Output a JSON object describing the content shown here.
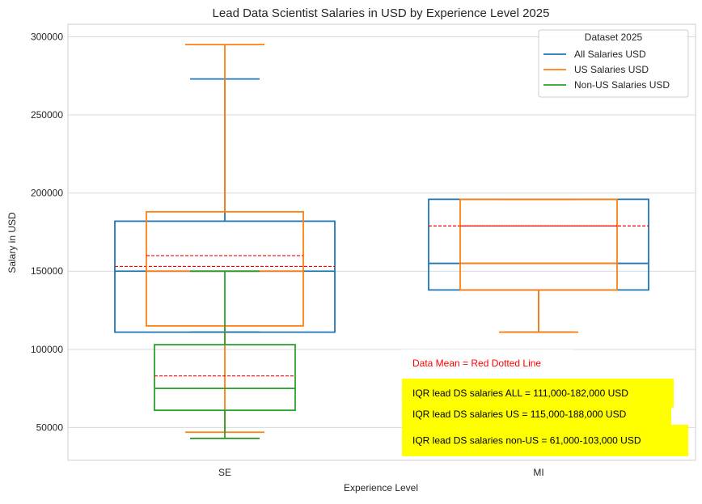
{
  "chart_data": {
    "type": "box",
    "title": "Lead Data Scientist Salaries in USD by Experience Level 2025",
    "xlabel": "Experience Level",
    "ylabel": "Salary in USD",
    "categories": [
      "SE",
      "MI"
    ],
    "ylim": [
      29000,
      308000
    ],
    "yticks": [
      50000,
      100000,
      150000,
      200000,
      250000,
      300000
    ],
    "grid": true,
    "legend": {
      "title": "Dataset 2025",
      "placement": "top-right",
      "entries": [
        {
          "name": "All Salaries USD",
          "color": "#1f77b4"
        },
        {
          "name": "US Salaries USD",
          "color": "#ff7f0e"
        },
        {
          "name": "Non-US Salaries USD",
          "color": "#2ca02c"
        }
      ]
    },
    "series": [
      {
        "name": "All Salaries USD",
        "color": "#1f77b4",
        "boxes": [
          {
            "category": "SE",
            "whisker_low": 111000,
            "q1": 111000,
            "median": 150000,
            "q3": 182000,
            "whisker_high": 273000,
            "mean": 153000
          },
          {
            "category": "MI",
            "whisker_low": 111000,
            "q1": 138000,
            "median": 155000,
            "q3": 196000,
            "whisker_high": 196000,
            "mean": 179000
          }
        ]
      },
      {
        "name": "US Salaries USD",
        "color": "#ff7f0e",
        "boxes": [
          {
            "category": "SE",
            "whisker_low": 47000,
            "q1": 115000,
            "median": 150000,
            "q3": 188000,
            "whisker_high": 295000,
            "mean": 160000
          },
          {
            "category": "MI",
            "whisker_low": 111000,
            "q1": 138000,
            "median": 155000,
            "q3": 196000,
            "whisker_high": 196000,
            "mean": 179000
          }
        ]
      },
      {
        "name": "Non-US Salaries USD",
        "color": "#2ca02c",
        "boxes": [
          {
            "category": "SE",
            "whisker_low": 43000,
            "q1": 61000,
            "median": 75000,
            "q3": 103000,
            "whisker_high": 150000,
            "mean": 83000
          }
        ]
      }
    ],
    "mean_line_color": "#ff0000",
    "annotations": [
      {
        "text": "Data Mean = Red Dotted Line",
        "color": "#ff0000",
        "background": "#ffffff"
      },
      {
        "text": "IQR lead DS salaries ALL = 111,000-182,000 USD",
        "color": "#000000",
        "background": "#ffff00"
      },
      {
        "text": "IQR lead DS salaries US = 115,000-188,000 USD",
        "color": "#000000",
        "background": "#ffff00"
      },
      {
        "text": "IQR lead DS salaries non-US = 61,000-103,000 USD",
        "color": "#000000",
        "background": "#ffff00"
      }
    ]
  }
}
